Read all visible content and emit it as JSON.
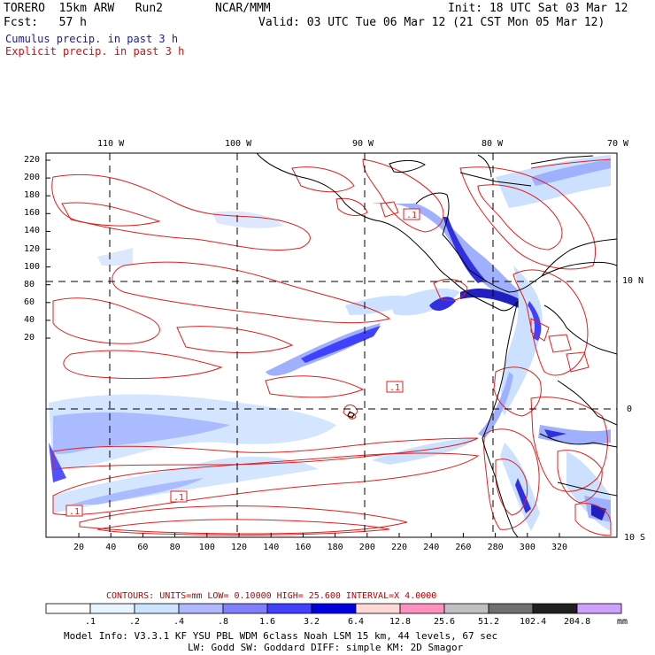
{
  "header": {
    "model": "TORERO  15km ARW   Run2",
    "org": "NCAR/MMM",
    "init": "Init: 18 UTC Sat 03 Mar 12",
    "fcst": "Fcst:   57 h",
    "valid": "Valid: 03 UTC Tue 06 Mar 12 (21 CST Mon 05 Mar 12)"
  },
  "legend": {
    "cumulus": "Cumulus precip. in past 3 h",
    "explicit": "Explicit precip. in past 3 h",
    "cumulus_color": "#1a1aa0",
    "explicit_color": "#d01010"
  },
  "map": {
    "lon_labels": [
      "110 W",
      "100 W",
      "90 W",
      "80 W",
      "70 W"
    ],
    "lat_labels": [
      "10 N",
      "0",
      "10 S"
    ],
    "y_ticks": [
      "220",
      "200",
      "180",
      "160",
      "140",
      "120",
      "100",
      "80",
      "60",
      "40",
      "20"
    ],
    "x_ticks": [
      "20",
      "40",
      "60",
      "80",
      "100",
      "120",
      "140",
      "160",
      "180",
      "200",
      "220",
      "240",
      "260",
      "280",
      "300",
      "320"
    ],
    "box_labels": [
      ".1",
      ".1",
      ".1",
      ".1"
    ]
  },
  "contours_info": "CONTOURS:  UNITS=mm  LOW= 0.10000      HIGH=  25.600     INTERVAL=X  4.0000",
  "colorbar": {
    "values": [
      ".1",
      ".2",
      ".4",
      ".8",
      "1.6",
      "3.2",
      "6.4",
      "12.8",
      "25.6",
      "51.2",
      "102.4",
      "204.8"
    ],
    "unit": "mm",
    "colors": [
      "#ffffff",
      "#ffffff",
      "#ffffff",
      "#e8f4ff",
      "#cce4ff",
      "#b0b8ff",
      "#8080ff",
      "#4040ff",
      "#0000e0",
      "#ffd8d8",
      "#ff90c0",
      "#c0c0c0",
      "#707070",
      "#202020",
      "#d0a0ff"
    ]
  },
  "footer": {
    "line1": "Model Info: V3.3.1   KF     YSU PBL  WDM 6class  Noah LSM  15 km,    44 levels,    67 sec",
    "line2": "LW: Godd SW: Goddard DIFF: simple KM: 2D Smagor"
  }
}
